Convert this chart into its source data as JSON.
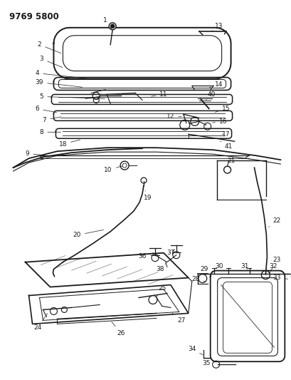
{
  "title": "9769 5800",
  "bg_color": "#ffffff",
  "line_color": "#1a1a1a",
  "label_color": "#000000",
  "title_fontsize": 8.5,
  "label_fontsize": 6.5,
  "fig_width": 4.1,
  "fig_height": 5.33,
  "dpi": 100
}
